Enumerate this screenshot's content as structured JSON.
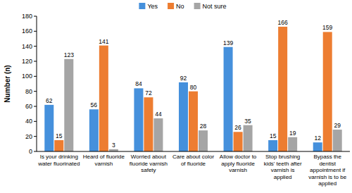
{
  "chart_data": {
    "type": "bar",
    "y_label": "Number (n)",
    "categories": [
      "Is your drinking water fluorinated",
      "Heard of fluoride varnish",
      "Worried about fluoride varnish safety",
      "Care about color of fluoride",
      "Allow doctor to apply fluoride varnish",
      "Stop brushing kids' teeth after varnish is applied",
      "Bypass the dentist appointment if varnish is to be applied"
    ],
    "series": [
      {
        "name": "Yes",
        "color": "#4590dc",
        "values": [
          62,
          56,
          84,
          92,
          139,
          15,
          12
        ]
      },
      {
        "name": "No",
        "color": "#ed7d31",
        "values": [
          15,
          141,
          72,
          80,
          26,
          166,
          159
        ]
      },
      {
        "name": "Not sure",
        "color": "#a5a5a5",
        "values": [
          123,
          3,
          44,
          28,
          35,
          19,
          29
        ]
      }
    ],
    "ylim": [
      0,
      180
    ],
    "yticks": [
      0,
      20,
      40,
      60,
      80,
      100,
      120,
      140,
      160,
      180
    ],
    "grid": false,
    "legend": "top",
    "data_labels": true
  }
}
